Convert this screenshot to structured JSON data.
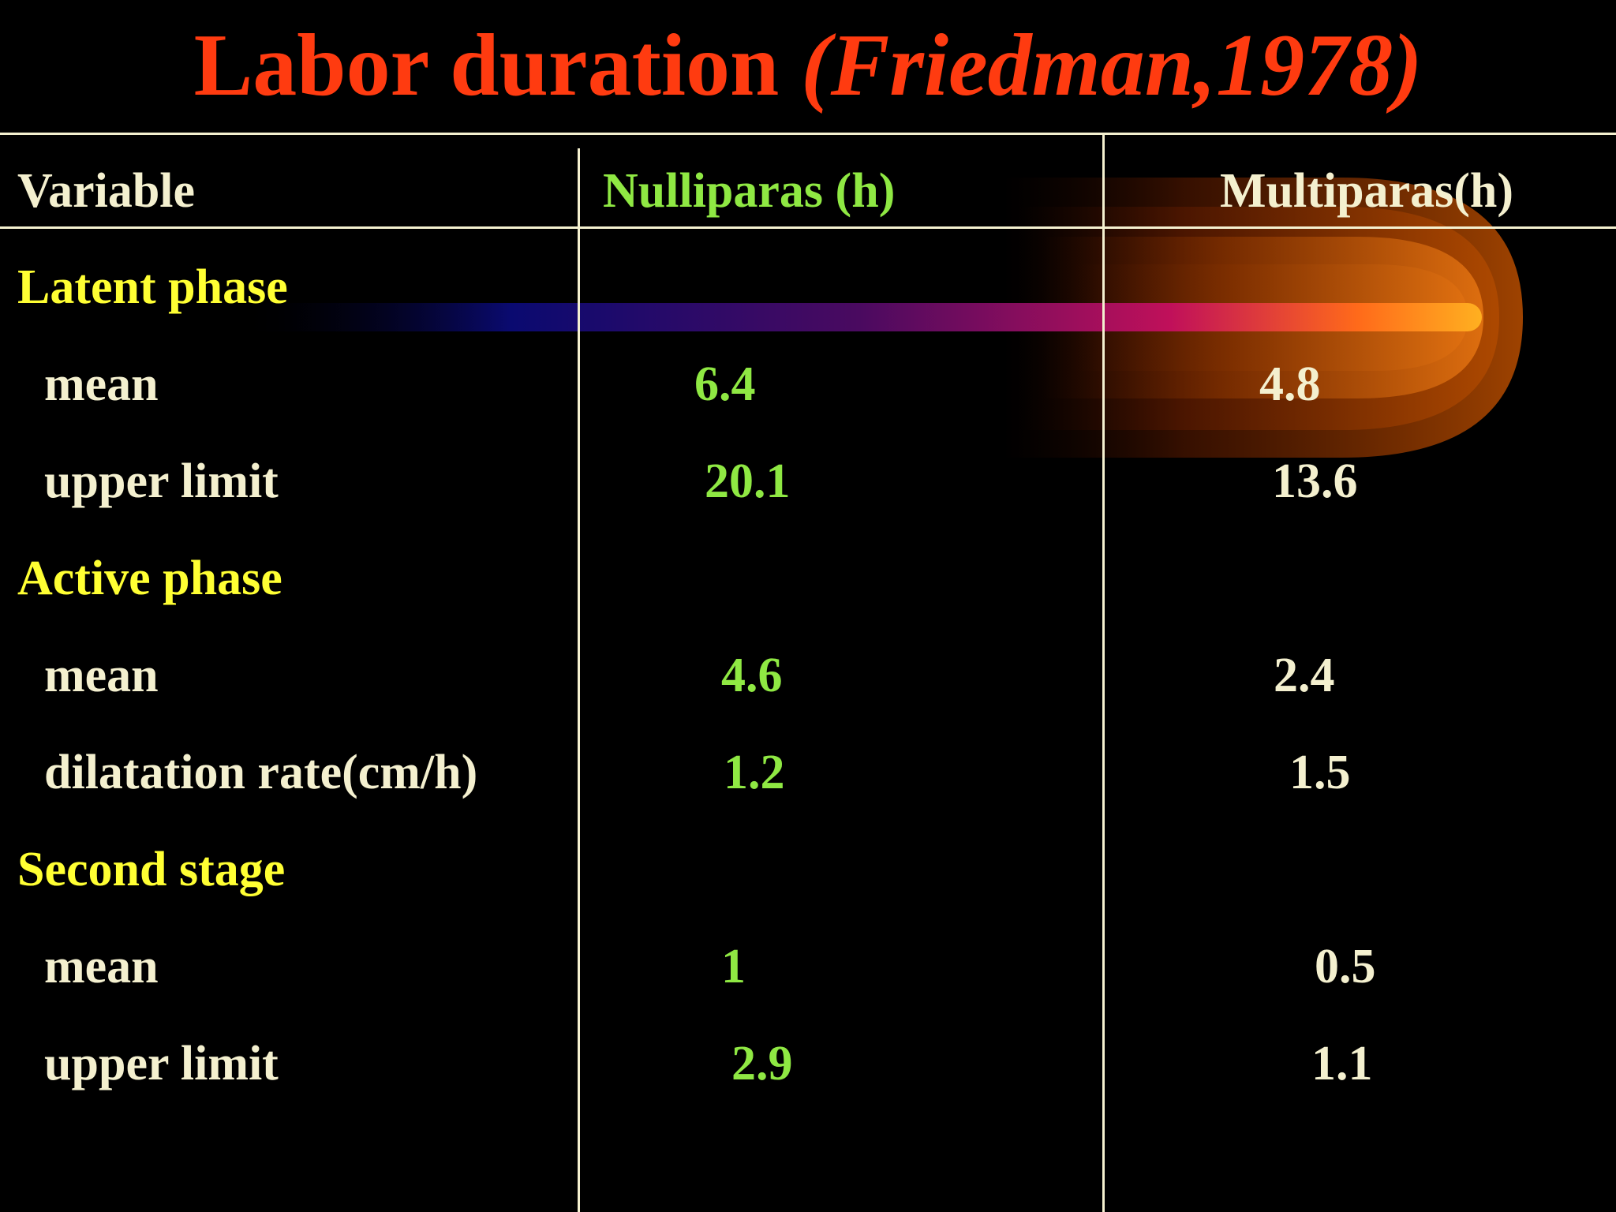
{
  "title": {
    "main": "Labor duration",
    "citation": "(Friedman,1978)"
  },
  "colors": {
    "background": "#000000",
    "title": "#ff3b10",
    "section": "#ffff33",
    "nulliparas": "#8fe843",
    "text": "#f4f0cf"
  },
  "table": {
    "headers": {
      "variable": "Variable",
      "nulliparas": "Nulliparas (h)",
      "multiparas": "Multiparas(h)"
    },
    "sections": [
      {
        "name": "Latent phase",
        "rows": [
          {
            "label": "mean",
            "nulliparas": "6.4",
            "multiparas": "4.8"
          },
          {
            "label": "upper limit",
            "nulliparas": "20.1",
            "multiparas": "13.6"
          }
        ]
      },
      {
        "name": "Active phase",
        "rows": [
          {
            "label": "mean",
            "nulliparas": "4.6",
            "multiparas": "2.4"
          },
          {
            "label": "dilatation rate(cm/h)",
            "nulliparas": "1.2",
            "multiparas": "1.5"
          }
        ]
      },
      {
        "name": "Second stage",
        "rows": [
          {
            "label": "mean",
            "nulliparas": "1",
            "multiparas": "0.5"
          },
          {
            "label": "upper limit",
            "nulliparas": "2.9",
            "multiparas": "1.1"
          }
        ]
      }
    ]
  }
}
